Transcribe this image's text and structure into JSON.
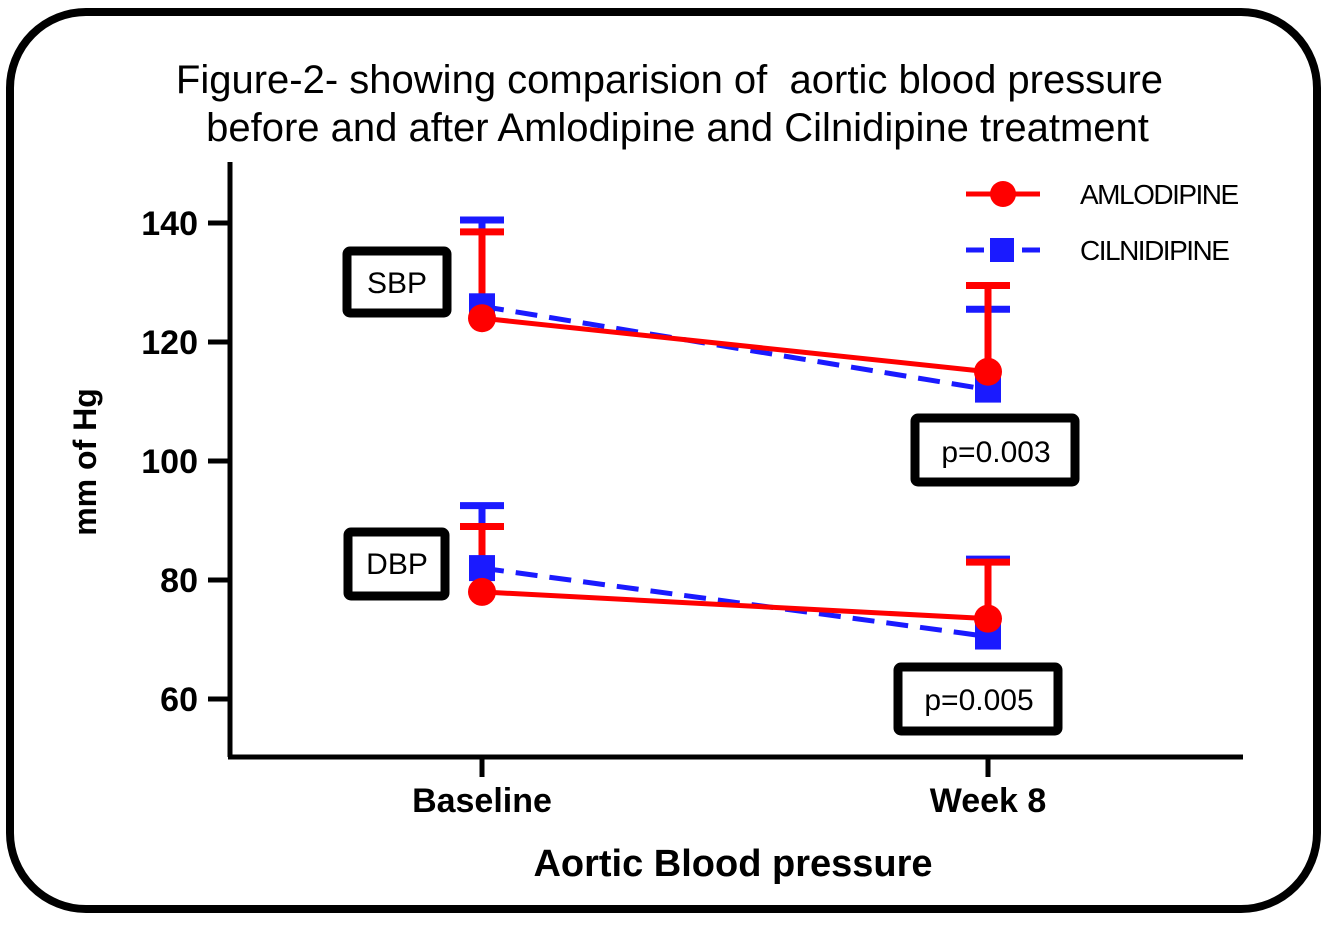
{
  "title_line1": "Figure-2- showing comparision of  aortic blood pressure",
  "title_line2": "before and after Amlodipine and Cilnidipine treatment",
  "chart_data": {
    "type": "line",
    "categories": [
      "Baseline",
      "Week 8"
    ],
    "xlabel": "Aortic Blood pressure",
    "ylabel": "mm of Hg",
    "ylim": [
      50,
      150
    ],
    "yticks": [
      60,
      80,
      100,
      120,
      140
    ],
    "grid": false,
    "legend_position": "top-right",
    "series": [
      {
        "name": "AMLODIPINE",
        "group": "SBP",
        "color": "#ff0000",
        "marker": "circle",
        "dash": "solid",
        "values": [
          124,
          115
        ],
        "error": [
          14.5,
          14.5
        ]
      },
      {
        "name": "CILNIDIPINE",
        "group": "SBP",
        "color": "#1a1aff",
        "marker": "square",
        "dash": "dashed",
        "values": [
          126,
          112
        ],
        "error": [
          14.5,
          13.5
        ]
      },
      {
        "name": "AMLODIPINE",
        "group": "DBP",
        "color": "#ff0000",
        "marker": "circle",
        "dash": "solid",
        "values": [
          78,
          73.5
        ],
        "error": [
          11,
          9.5
        ]
      },
      {
        "name": "CILNIDIPINE",
        "group": "DBP",
        "color": "#1a1aff",
        "marker": "square",
        "dash": "dashed",
        "values": [
          82,
          70.5
        ],
        "error": [
          10.5,
          13
        ]
      }
    ],
    "legend": [
      {
        "label": "AMLODIPINE",
        "color": "#ff0000",
        "marker": "circle",
        "dash": "solid"
      },
      {
        "label": "CILNIDIPINE",
        "color": "#1a1aff",
        "marker": "square",
        "dash": "dashed"
      }
    ],
    "annotations": [
      {
        "text": "SBP",
        "category": "Baseline",
        "y": 131
      },
      {
        "text": "DBP",
        "category": "Baseline",
        "y": 83
      },
      {
        "text": "p=0.003",
        "category": "Week 8",
        "y": 102
      },
      {
        "text": "p=0.005",
        "category": "Week 8",
        "y": 60
      }
    ]
  }
}
